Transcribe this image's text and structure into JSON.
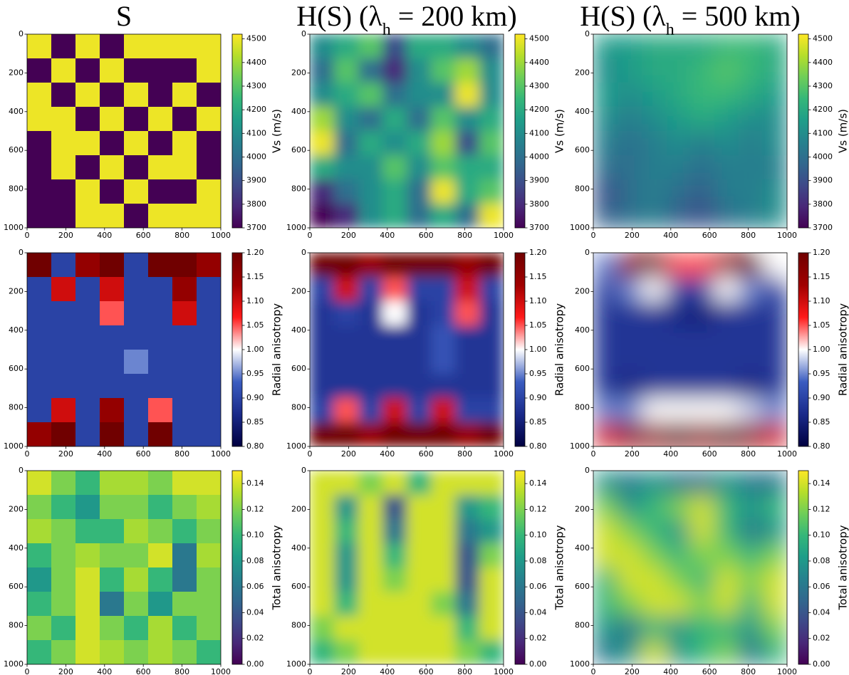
{
  "chart_data": {
    "type": "heatmap",
    "column_titles": [
      [
        "S"
      ],
      [
        "H(S) (λ",
        "h",
        " = 200 km)"
      ],
      [
        "H(S) (λ",
        "h",
        " = 500 km)"
      ]
    ],
    "xlim": [
      0,
      1000
    ],
    "ylim": [
      1000,
      0
    ],
    "xticks": [
      0,
      200,
      400,
      600,
      800,
      1000
    ],
    "yticks": [
      0,
      200,
      400,
      600,
      800,
      1000
    ],
    "rows": [
      {
        "colorbar": {
          "label": "Vs (m/s)",
          "lim": [
            3700,
            4520
          ],
          "ticks": [
            3700,
            3800,
            3900,
            4000,
            4100,
            4200,
            4300,
            4400,
            4500
          ],
          "colors": [
            "#440154",
            "#482878",
            "#3e4a89",
            "#31688e",
            "#26828e",
            "#1f9e89",
            "#35b779",
            "#6ece58",
            "#b5de2b",
            "#fde725"
          ]
        },
        "panels": [
          {
            "z": [
              [
                4500,
                3700,
                4500,
                3700,
                4500,
                4500,
                4500,
                4500
              ],
              [
                3700,
                4500,
                3700,
                4500,
                3700,
                3700,
                3700,
                4500
              ],
              [
                4500,
                3700,
                4500,
                3700,
                4500,
                3700,
                4500,
                3700
              ],
              [
                4500,
                4500,
                3700,
                4500,
                3700,
                4500,
                3700,
                4500
              ],
              [
                3700,
                4500,
                4500,
                3700,
                4500,
                3700,
                4500,
                3700
              ],
              [
                3700,
                4500,
                3700,
                4500,
                3700,
                4500,
                4500,
                3700
              ],
              [
                3700,
                3700,
                4500,
                3700,
                4500,
                3700,
                3700,
                4500
              ],
              [
                3700,
                3700,
                4500,
                4500,
                3700,
                4500,
                4500,
                4500
              ]
            ]
          },
          {
            "z": [
              [
                4100,
                4200,
                4300,
                3900,
                4200,
                4200,
                4100,
                4000
              ],
              [
                4000,
                4300,
                4000,
                3800,
                4100,
                4300,
                4400,
                4100
              ],
              [
                4100,
                4200,
                4300,
                4000,
                4100,
                4100,
                4500,
                4100
              ],
              [
                4400,
                4100,
                4000,
                4200,
                4000,
                4300,
                4100,
                4200
              ],
              [
                4500,
                4000,
                4200,
                4100,
                4200,
                4400,
                3900,
                4300
              ],
              [
                4200,
                4100,
                4100,
                4300,
                4100,
                4300,
                4200,
                4200
              ],
              [
                3800,
                4000,
                4100,
                4200,
                4000,
                4500,
                4200,
                4300
              ],
              [
                3700,
                3800,
                4100,
                4200,
                4000,
                4200,
                4000,
                4500
              ]
            ]
          },
          {
            "z": [
              [
                4150,
                4150,
                4200,
                4200,
                4200,
                4250,
                4250,
                4200
              ],
              [
                4100,
                4150,
                4200,
                4200,
                4250,
                4300,
                4250,
                4200
              ],
              [
                4150,
                4100,
                4150,
                4200,
                4250,
                4250,
                4200,
                4150
              ],
              [
                4100,
                4050,
                4100,
                4150,
                4200,
                4150,
                4100,
                4100
              ],
              [
                4050,
                4000,
                4050,
                4100,
                4050,
                4100,
                4050,
                4100
              ],
              [
                4000,
                4000,
                4050,
                4050,
                4000,
                4050,
                4050,
                4050
              ],
              [
                3900,
                4000,
                4050,
                4000,
                3950,
                4050,
                4050,
                4100
              ],
              [
                3950,
                4000,
                4050,
                3950,
                3900,
                4000,
                4050,
                4100
              ]
            ]
          }
        ]
      },
      {
        "colorbar": {
          "label": "Radial anisotropy",
          "lim": [
            0.8,
            1.2
          ],
          "ticks": [
            {
              "value": 0.8,
              "label": "0.80"
            },
            {
              "value": 0.85,
              "label": "0.85"
            },
            {
              "value": 0.9,
              "label": "0.90"
            },
            {
              "value": 0.95,
              "label": "0.95"
            },
            {
              "value": 1,
              "label": "1.00"
            },
            {
              "value": 1.05,
              "label": "1.05"
            },
            {
              "value": 1.1,
              "label": "1.10"
            },
            {
              "value": 1.15,
              "label": "1.15"
            },
            {
              "value": 1.2,
              "label": "1.20"
            }
          ],
          "colors": [
            "#000040",
            "#1a2a8a",
            "#3a5cc0",
            "#ffffff",
            "#ff1a1a",
            "#a00000",
            "#700000"
          ]
        },
        "panels": [
          {
            "z": [
              [
                1.2,
                0.9,
                1.15,
                1.2,
                0.9,
                1.2,
                1.2,
                1.15
              ],
              [
                0.9,
                1.1,
                0.9,
                1.1,
                0.9,
                0.9,
                1.15,
                0.9
              ],
              [
                0.9,
                0.9,
                0.9,
                1.05,
                0.9,
                0.9,
                1.1,
                0.9
              ],
              [
                0.9,
                0.9,
                0.9,
                0.9,
                0.9,
                0.9,
                0.9,
                0.9
              ],
              [
                0.9,
                0.9,
                0.9,
                0.9,
                0.95,
                0.9,
                0.9,
                0.9
              ],
              [
                0.9,
                0.9,
                0.9,
                0.9,
                0.9,
                0.9,
                0.9,
                0.9
              ],
              [
                0.9,
                1.1,
                0.9,
                1.15,
                0.9,
                1.05,
                0.9,
                0.9
              ],
              [
                1.15,
                1.2,
                0.9,
                1.2,
                0.9,
                1.2,
                0.9,
                0.9
              ]
            ]
          },
          {
            "z": [
              [
                1.2,
                1.2,
                1.15,
                1.2,
                1.2,
                1.2,
                1.15,
                1.2
              ],
              [
                0.9,
                1.1,
                0.9,
                1.05,
                0.9,
                0.9,
                1.1,
                0.9
              ],
              [
                0.88,
                0.9,
                0.88,
                1,
                0.88,
                0.9,
                1.05,
                0.88
              ],
              [
                0.88,
                0.88,
                0.88,
                0.88,
                0.88,
                0.92,
                0.88,
                0.88
              ],
              [
                0.88,
                0.88,
                0.88,
                0.88,
                0.88,
                0.92,
                0.88,
                0.88
              ],
              [
                0.88,
                0.88,
                0.88,
                0.88,
                0.88,
                0.88,
                0.88,
                0.88
              ],
              [
                0.9,
                1.05,
                0.9,
                1.1,
                0.9,
                1.1,
                0.9,
                0.9
              ],
              [
                1.2,
                1.2,
                1.15,
                1.2,
                1.2,
                1.2,
                1.15,
                1.2
              ]
            ]
          },
          {
            "z": [
              [
                0.95,
                1.15,
                1.2,
                1.05,
                1.05,
                1.15,
                1.2,
                1
              ],
              [
                0.9,
                0.95,
                1,
                0.9,
                0.9,
                1,
                0.95,
                0.9
              ],
              [
                0.88,
                0.88,
                0.88,
                0.86,
                0.85,
                0.88,
                0.88,
                0.88
              ],
              [
                0.88,
                0.88,
                0.88,
                0.88,
                0.88,
                0.88,
                0.88,
                0.88
              ],
              [
                0.88,
                0.88,
                0.88,
                0.88,
                0.88,
                0.88,
                0.88,
                0.88
              ],
              [
                0.88,
                0.86,
                0.88,
                0.88,
                0.88,
                0.88,
                0.86,
                0.88
              ],
              [
                0.95,
                0.95,
                1,
                1,
                1,
                1,
                0.98,
                0.95
              ],
              [
                1.1,
                1.15,
                1.15,
                1.2,
                1.15,
                1.2,
                1.15,
                1.1
              ]
            ]
          }
        ]
      },
      {
        "colorbar": {
          "label": "Total anisotropy",
          "lim": [
            0,
            0.15
          ],
          "ticks": [
            {
              "value": 0,
              "label": "0.00"
            },
            {
              "value": 0.02,
              "label": "0.02"
            },
            {
              "value": 0.04,
              "label": "0.04"
            },
            {
              "value": 0.06,
              "label": "0.06"
            },
            {
              "value": 0.08,
              "label": "0.08"
            },
            {
              "value": 0.1,
              "label": "0.10"
            },
            {
              "value": 0.12,
              "label": "0.12"
            },
            {
              "value": 0.14,
              "label": "0.14"
            }
          ],
          "colors": [
            "#440154",
            "#482878",
            "#3e4a89",
            "#31688e",
            "#26828e",
            "#1f9e89",
            "#35b779",
            "#6ece58",
            "#b5de2b",
            "#fde725"
          ]
        },
        "panels": [
          {
            "z": [
              [
                0.14,
                0.12,
                0.1,
                0.13,
                0.13,
                0.12,
                0.14,
                0.14
              ],
              [
                0.12,
                0.1,
                0.08,
                0.12,
                0.12,
                0.1,
                0.12,
                0.13
              ],
              [
                0.13,
                0.12,
                0.1,
                0.1,
                0.13,
                0.12,
                0.1,
                0.12
              ],
              [
                0.1,
                0.12,
                0.13,
                0.12,
                0.12,
                0.14,
                0.06,
                0.13
              ],
              [
                0.08,
                0.12,
                0.14,
                0.1,
                0.13,
                0.1,
                0.06,
                0.12
              ],
              [
                0.1,
                0.12,
                0.14,
                0.06,
                0.12,
                0.08,
                0.12,
                0.12
              ],
              [
                0.12,
                0.1,
                0.14,
                0.12,
                0.1,
                0.13,
                0.1,
                0.12
              ],
              [
                0.1,
                0.12,
                0.14,
                0.13,
                0.12,
                0.13,
                0.12,
                0.1
              ]
            ]
          },
          {
            "z": [
              [
                0.14,
                0.14,
                0.12,
                0.14,
                0.1,
                0.14,
                0.14,
                0.14
              ],
              [
                0.14,
                0.08,
                0.14,
                0.04,
                0.14,
                0.14,
                0.08,
                0.1
              ],
              [
                0.14,
                0.1,
                0.14,
                0.06,
                0.14,
                0.14,
                0.06,
                0.08
              ],
              [
                0.14,
                0.08,
                0.14,
                0.1,
                0.14,
                0.14,
                0.04,
                0.12
              ],
              [
                0.14,
                0.08,
                0.14,
                0.12,
                0.14,
                0.14,
                0.04,
                0.14
              ],
              [
                0.14,
                0.1,
                0.14,
                0.14,
                0.14,
                0.12,
                0.06,
                0.14
              ],
              [
                0.12,
                0.14,
                0.14,
                0.14,
                0.14,
                0.14,
                0.1,
                0.14
              ],
              [
                0.1,
                0.12,
                0.14,
                0.14,
                0.14,
                0.14,
                0.12,
                0.1
              ]
            ]
          },
          {
            "z": [
              [
                0.08,
                0.06,
                0.08,
                0.06,
                0.06,
                0.08,
                0.06,
                0.06
              ],
              [
                0.12,
                0.08,
                0.1,
                0.12,
                0.14,
                0.1,
                0.08,
                0.1
              ],
              [
                0.14,
                0.12,
                0.1,
                0.08,
                0.14,
                0.1,
                0.06,
                0.08
              ],
              [
                0.14,
                0.14,
                0.12,
                0.1,
                0.12,
                0.12,
                0.1,
                0.12
              ],
              [
                0.1,
                0.14,
                0.14,
                0.12,
                0.1,
                0.14,
                0.12,
                0.14
              ],
              [
                0.1,
                0.12,
                0.14,
                0.14,
                0.12,
                0.14,
                0.1,
                0.14
              ],
              [
                0.08,
                0.06,
                0.1,
                0.08,
                0.1,
                0.1,
                0.08,
                0.12
              ],
              [
                0.06,
                0.08,
                0.14,
                0.08,
                0.1,
                0.12,
                0.06,
                0.1
              ]
            ]
          }
        ]
      }
    ]
  }
}
